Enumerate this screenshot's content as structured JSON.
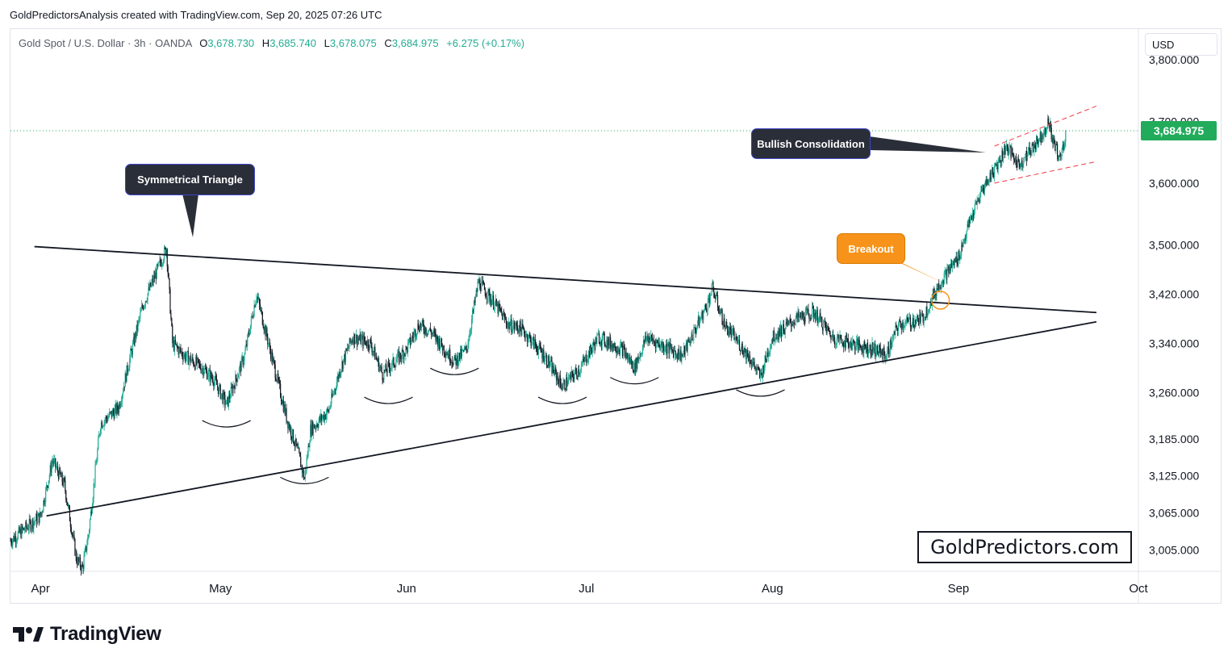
{
  "header": {
    "text": "GoldPredictorsAnalysis created with TradingView.com, Sep 20, 2025 07:26 UTC"
  },
  "symbol": {
    "name": "Gold Spot / U.S. Dollar · 3h · OANDA",
    "open_key": "O",
    "open": "3,678.730",
    "high_key": "H",
    "high": "3,685.740",
    "low_key": "L",
    "low": "3,678.075",
    "close_key": "C",
    "close": "3,684.975",
    "change": "+6.275 (+0.17%)"
  },
  "price_scale": {
    "currency": "USD",
    "current": "3,684.975",
    "current_color": "#22ab5b"
  },
  "annotations": {
    "triangle": "Symmetrical Triangle",
    "consolidation": "Bullish Consolidation",
    "breakout": "Breakout"
  },
  "watermark": "GoldPredictors.com",
  "brand": "TradingView",
  "chart_data": {
    "type": "candlestick",
    "title": "",
    "xlabel": "",
    "ylabel": "",
    "y_ticks": [
      "3,800.000",
      "3,700.000",
      "3,600.000",
      "3,500.000",
      "3,420.000",
      "3,340.000",
      "3,260.000",
      "3,185.000",
      "3,125.000",
      "3,065.000",
      "3,005.000"
    ],
    "y_tick_values": [
      3800,
      3700,
      3600,
      3500,
      3420,
      3340,
      3260,
      3185,
      3125,
      3065,
      3005
    ],
    "x_ticks": [
      "Apr",
      "May",
      "Jun",
      "Jul",
      "Aug",
      "Sep",
      "Oct"
    ],
    "x_tick_dates": [
      "2025-04-01",
      "2025-05-01",
      "2025-06-01",
      "2025-07-01",
      "2025-08-01",
      "2025-09-01",
      "2025-10-01"
    ],
    "date_range": [
      "2025-03-27",
      "2025-10-01"
    ],
    "ylim": [
      2970,
      3850
    ],
    "up_color": "#22ab94",
    "down_color": "#131722",
    "price_path": [
      [
        "2025-03-27",
        3020
      ],
      [
        "2025-04-01",
        3060
      ],
      [
        "2025-04-03",
        3150
      ],
      [
        "2025-04-05",
        3110
      ],
      [
        "2025-04-07",
        2990
      ],
      [
        "2025-04-08",
        2975
      ],
      [
        "2025-04-09",
        3030
      ],
      [
        "2025-04-11",
        3210
      ],
      [
        "2025-04-14",
        3235
      ],
      [
        "2025-04-16",
        3320
      ],
      [
        "2025-04-18",
        3400
      ],
      [
        "2025-04-22",
        3495
      ],
      [
        "2025-04-23",
        3340
      ],
      [
        "2025-04-25",
        3320
      ],
      [
        "2025-04-28",
        3300
      ],
      [
        "2025-04-30",
        3280
      ],
      [
        "2025-05-02",
        3240
      ],
      [
        "2025-05-05",
        3320
      ],
      [
        "2025-05-07",
        3420
      ],
      [
        "2025-05-09",
        3340
      ],
      [
        "2025-05-12",
        3220
      ],
      [
        "2025-05-14",
        3160
      ],
      [
        "2025-05-15",
        3120
      ],
      [
        "2025-05-16",
        3200
      ],
      [
        "2025-05-19",
        3230
      ],
      [
        "2025-05-21",
        3300
      ],
      [
        "2025-05-23",
        3350
      ],
      [
        "2025-05-26",
        3340
      ],
      [
        "2025-05-28",
        3290
      ],
      [
        "2025-06-01",
        3330
      ],
      [
        "2025-06-03",
        3370
      ],
      [
        "2025-06-05",
        3360
      ],
      [
        "2025-06-09",
        3310
      ],
      [
        "2025-06-11",
        3330
      ],
      [
        "2025-06-13",
        3440
      ],
      [
        "2025-06-16",
        3400
      ],
      [
        "2025-06-18",
        3370
      ],
      [
        "2025-06-20",
        3365
      ],
      [
        "2025-06-24",
        3320
      ],
      [
        "2025-06-27",
        3270
      ],
      [
        "2025-06-30",
        3300
      ],
      [
        "2025-07-03",
        3350
      ],
      [
        "2025-07-07",
        3330
      ],
      [
        "2025-07-09",
        3300
      ],
      [
        "2025-07-11",
        3350
      ],
      [
        "2025-07-15",
        3330
      ],
      [
        "2025-07-17",
        3320
      ],
      [
        "2025-07-21",
        3400
      ],
      [
        "2025-07-22",
        3430
      ],
      [
        "2025-07-24",
        3370
      ],
      [
        "2025-07-28",
        3320
      ],
      [
        "2025-07-30",
        3285
      ],
      [
        "2025-08-01",
        3350
      ],
      [
        "2025-08-05",
        3380
      ],
      [
        "2025-08-08",
        3390
      ],
      [
        "2025-08-11",
        3350
      ],
      [
        "2025-08-14",
        3340
      ],
      [
        "2025-08-18",
        3330
      ],
      [
        "2025-08-20",
        3320
      ],
      [
        "2025-08-22",
        3370
      ],
      [
        "2025-08-26",
        3380
      ],
      [
        "2025-08-29",
        3440
      ],
      [
        "2025-09-01",
        3480
      ],
      [
        "2025-09-03",
        3540
      ],
      [
        "2025-09-05",
        3590
      ],
      [
        "2025-09-08",
        3640
      ],
      [
        "2025-09-09",
        3660
      ],
      [
        "2025-09-11",
        3630
      ],
      [
        "2025-09-12",
        3640
      ],
      [
        "2025-09-15",
        3680
      ],
      [
        "2025-09-16",
        3700
      ],
      [
        "2025-09-17",
        3660
      ],
      [
        "2025-09-18",
        3640
      ],
      [
        "2025-09-19",
        3685
      ]
    ],
    "trendlines": [
      {
        "name": "",
        "from": [
          "2025-03-31",
          3497
        ],
        "to": [
          "2025-09-24",
          3390
        ],
        "style": "solid"
      },
      {
        "name": "",
        "from": [
          "2025-04-02",
          3060
        ],
        "to": [
          "2025-09-24",
          3375
        ],
        "style": "solid"
      },
      {
        "name": "",
        "from": [
          "2025-09-07",
          3660
        ],
        "to": [
          "2025-09-24",
          3725
        ],
        "style": "dashed"
      },
      {
        "name": "",
        "from": [
          "2025-09-07",
          3600
        ],
        "to": [
          "2025-09-24",
          3635
        ],
        "style": "dashed"
      }
    ],
    "swing_lows": [
      [
        "2025-05-02",
        3220
      ],
      [
        "2025-05-15",
        3128
      ],
      [
        "2025-05-29",
        3258
      ],
      [
        "2025-06-09",
        3305
      ],
      [
        "2025-06-27",
        3258
      ],
      [
        "2025-07-09",
        3290
      ],
      [
        "2025-07-30",
        3270
      ]
    ],
    "breakout_point": [
      "2025-08-29",
      3410
    ],
    "current_price": 3684.975,
    "legend": "none",
    "grid": false
  }
}
